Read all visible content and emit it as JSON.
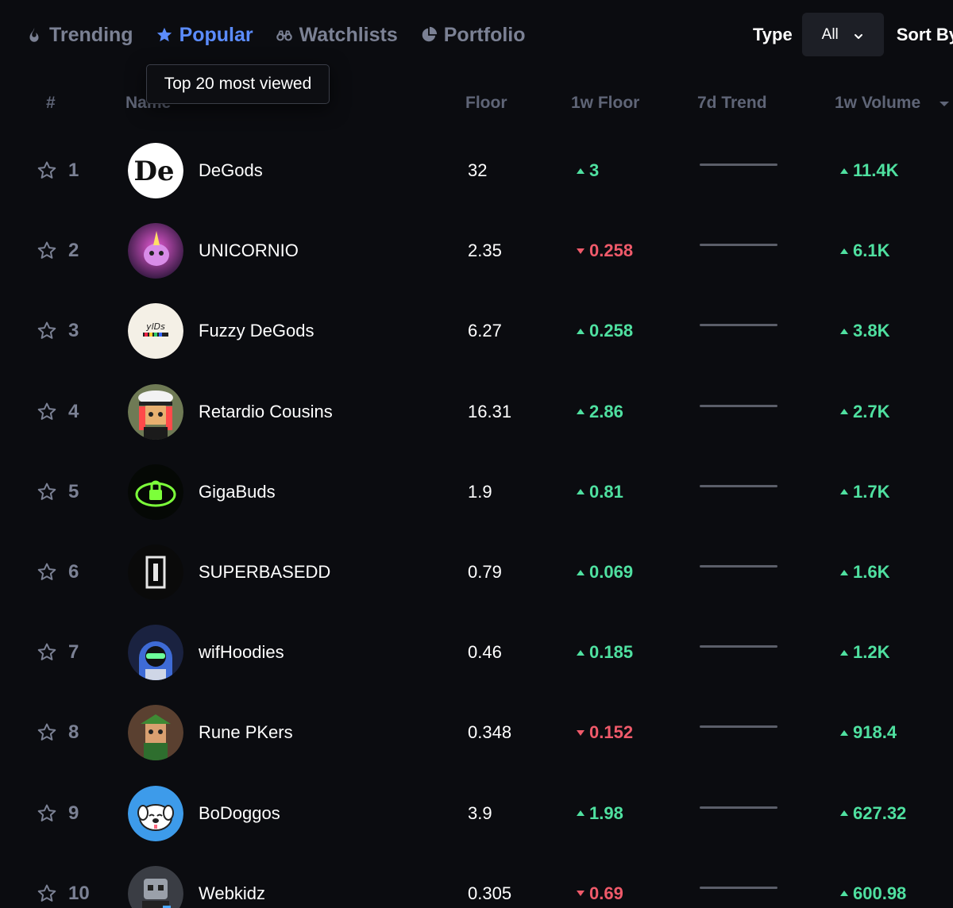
{
  "tabs": [
    {
      "label": "Trending",
      "icon": "flame-icon",
      "active": false
    },
    {
      "label": "Popular",
      "icon": "star-icon",
      "active": true
    },
    {
      "label": "Watchlists",
      "icon": "binoculars-icon",
      "active": false
    },
    {
      "label": "Portfolio",
      "icon": "pie-chart-icon",
      "active": false
    }
  ],
  "filters": {
    "type_label": "Type",
    "type_value": "All",
    "sort_label": "Sort By"
  },
  "tooltip": "Top 20 most viewed",
  "columns": {
    "rank": "#",
    "name": "Name",
    "floor": "Floor",
    "floor_change": "1w Floor",
    "trend": "7d Trend",
    "volume": "1w Volume"
  },
  "colors": {
    "accent": "#5b8cff",
    "positive": "#4fe0a0",
    "negative": "#ef5a6a"
  },
  "rows": [
    {
      "rank": "1",
      "name": "DeGods",
      "floor": "32",
      "change": "3",
      "direction": "up",
      "volume": "11.4K"
    },
    {
      "rank": "2",
      "name": "UNICORNIO",
      "floor": "2.35",
      "change": "0.258",
      "direction": "down",
      "volume": "6.1K"
    },
    {
      "rank": "3",
      "name": "Fuzzy DeGods",
      "floor": "6.27",
      "change": "0.258",
      "direction": "up",
      "volume": "3.8K"
    },
    {
      "rank": "4",
      "name": "Retardio Cousins",
      "floor": "16.31",
      "change": "2.86",
      "direction": "up",
      "volume": "2.7K"
    },
    {
      "rank": "5",
      "name": "GigaBuds",
      "floor": "1.9",
      "change": "0.81",
      "direction": "up",
      "volume": "1.7K"
    },
    {
      "rank": "6",
      "name": "SUPERBASEDD",
      "floor": "0.79",
      "change": "0.069",
      "direction": "up",
      "volume": "1.6K"
    },
    {
      "rank": "7",
      "name": "wifHoodies",
      "floor": "0.46",
      "change": "0.185",
      "direction": "up",
      "volume": "1.2K"
    },
    {
      "rank": "8",
      "name": "Rune PKers",
      "floor": "0.348",
      "change": "0.152",
      "direction": "down",
      "volume": "918.4"
    },
    {
      "rank": "9",
      "name": "BoDoggos",
      "floor": "3.9",
      "change": "1.98",
      "direction": "up",
      "volume": "627.32"
    },
    {
      "rank": "10",
      "name": "Webkidz",
      "floor": "0.305",
      "change": "0.69",
      "direction": "down",
      "volume": "600.98"
    }
  ]
}
